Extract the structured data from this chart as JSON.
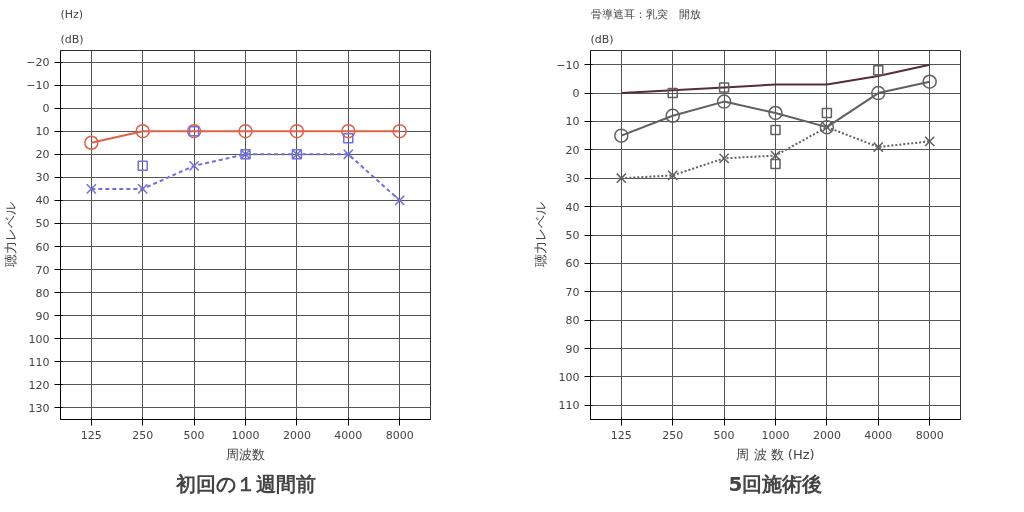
{
  "chart_data": [
    {
      "type": "line",
      "title": "初回の１週間前",
      "xlabel": "周波数",
      "ylabel": "聴力レベル",
      "categories": [
        "125",
        "250",
        "500",
        "1000",
        "2000",
        "4000",
        "8000"
      ],
      "ylim": [
        135,
        -25
      ],
      "yticks": [
        -20,
        -10,
        0,
        10,
        20,
        30,
        40,
        50,
        60,
        70,
        80,
        90,
        100,
        110,
        120,
        130
      ],
      "grid": true,
      "series": [
        {
          "color": "#e0604a",
          "values": [
            15,
            10,
            10,
            10,
            10,
            10,
            10
          ],
          "marker": "circle",
          "line_style": "solid"
        },
        {
          "color": "#7070d8",
          "values": [
            35,
            35,
            25,
            20,
            20,
            20,
            40
          ],
          "marker": "cross",
          "line_style": "dashed"
        },
        {
          "type": "scatter",
          "color": "#7070d8",
          "values": [
            null,
            25,
            10,
            20,
            20,
            13,
            null
          ],
          "marker": "square"
        }
      ],
      "annotations": [
        "(dB)",
        "(Hz)"
      ]
    },
    {
      "type": "line",
      "title": "5回施術後",
      "xlabel": "周 波 数 (Hz)",
      "ylabel": "聴力レベル",
      "categories": [
        "125",
        "250",
        "500",
        "1000",
        "2000",
        "4000",
        "8000"
      ],
      "ylim": [
        115,
        -15
      ],
      "yticks": [
        -10,
        0,
        10,
        20,
        30,
        40,
        50,
        60,
        70,
        80,
        90,
        100,
        110
      ],
      "grid": true,
      "series": [
        {
          "color": "#5a2a40",
          "values": [
            0,
            -1,
            -2,
            -3,
            -3,
            -6,
            -10
          ],
          "marker": "none",
          "line_style": "solid"
        },
        {
          "color": "#606060",
          "values": [
            15,
            8,
            3,
            7,
            12,
            0,
            -4
          ],
          "marker": "circle",
          "line_style": "solid"
        },
        {
          "color": "#606060",
          "values": [
            30,
            29,
            23,
            22,
            12,
            19,
            17
          ],
          "marker": "cross",
          "line_style": "dotted"
        },
        {
          "type": "scatter",
          "color": "#606060",
          "values": [
            null,
            0,
            -2,
            13,
            7,
            -8,
            null
          ],
          "marker": "square"
        },
        {
          "type": "scatter",
          "color": "#606060",
          "values": [
            null,
            null,
            null,
            25,
            null,
            null,
            null
          ],
          "marker": "square"
        }
      ],
      "annotations": [
        "(dB)",
        "骨導遮耳：乳突　開放"
      ]
    }
  ]
}
